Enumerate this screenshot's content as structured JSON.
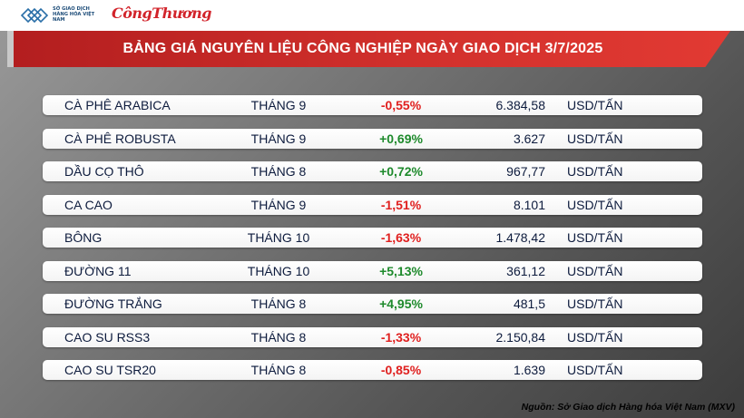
{
  "header": {
    "logo_mxv_text": "SỞ GIAO DỊCH HÀNG HÓA VIỆT NAM",
    "logo_ct_text": "CôngThương"
  },
  "banner": {
    "title": "BẢNG GIÁ NGUYÊN LIỆU CÔNG NGHIỆP NGÀY GIAO DỊCH 3/7/2025"
  },
  "colors": {
    "banner_red": "#d1302c",
    "negative": "#e0201f",
    "positive": "#1e8a2c",
    "text_dark": "#0d1b3d"
  },
  "rows": [
    {
      "name": "CÀ PHÊ ARABICA",
      "month": "THÁNG 9",
      "change": "-0,55%",
      "direction": "neg",
      "price": "6.384,58",
      "unit": "USD/TẤN"
    },
    {
      "name": "CÀ PHÊ ROBUSTA",
      "month": "THÁNG 9",
      "change": "+0,69%",
      "direction": "pos",
      "price": "3.627",
      "unit": "USD/TẤN"
    },
    {
      "name": "DẦU CỌ THÔ",
      "month": "THÁNG 8",
      "change": "+0,72%",
      "direction": "pos",
      "price": "967,77",
      "unit": "USD/TẤN"
    },
    {
      "name": "CA CAO",
      "month": "THÁNG 9",
      "change": "-1,51%",
      "direction": "neg",
      "price": "8.101",
      "unit": "USD/TẤN"
    },
    {
      "name": "BÔNG",
      "month": "THÁNG 10",
      "change": "-1,63%",
      "direction": "neg",
      "price": "1.478,42",
      "unit": "USD/TẤN"
    },
    {
      "name": "ĐƯỜNG 11",
      "month": "THÁNG 10",
      "change": "+5,13%",
      "direction": "pos",
      "price": "361,12",
      "unit": "USD/TẤN"
    },
    {
      "name": "ĐƯỜNG TRẮNG",
      "month": "THÁNG 8",
      "change": "+4,95%",
      "direction": "pos",
      "price": "481,5",
      "unit": "USD/TẤN"
    },
    {
      "name": "CAO SU RSS3",
      "month": "THÁNG 8",
      "change": "-1,33%",
      "direction": "neg",
      "price": "2.150,84",
      "unit": "USD/TẤN"
    },
    {
      "name": "CAO SU TSR20",
      "month": "THÁNG 8",
      "change": "-0,85%",
      "direction": "neg",
      "price": "1.639",
      "unit": "USD/TẤN"
    }
  ],
  "footer": {
    "source": "Nguồn: Sở Giao dịch Hàng hóa Việt Nam (MXV)"
  }
}
